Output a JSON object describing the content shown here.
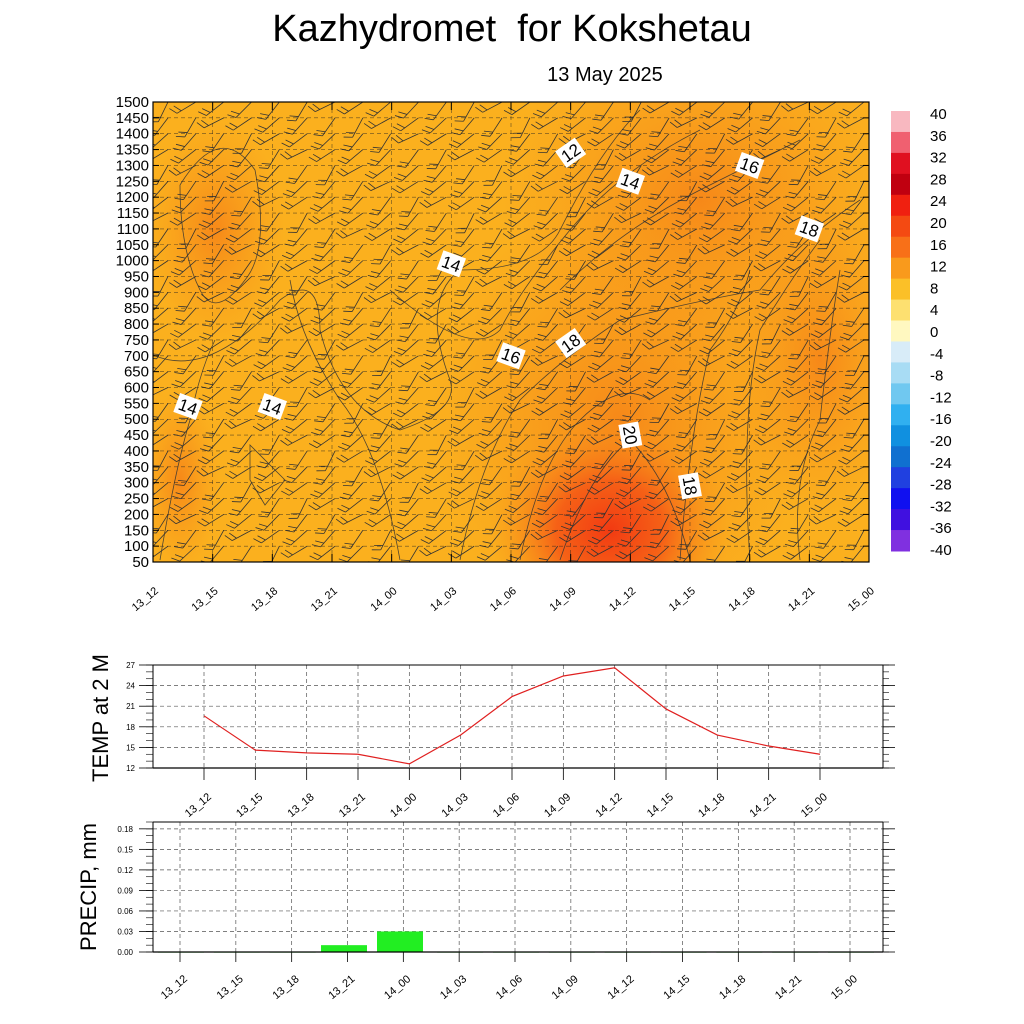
{
  "title": "Kazhydromet  for Kokshetau",
  "subtitle": "13 May 2025",
  "time_labels": [
    "13_12",
    "13_15",
    "13_18",
    "13_21",
    "14_00",
    "14_03",
    "14_06",
    "14_09",
    "14_12",
    "14_15",
    "14_18",
    "14_21",
    "15_00"
  ],
  "colors": {
    "warm_low": "#fbb01e",
    "warm_mid": "#f8961a",
    "hot": "#f23a12",
    "temp_line": "#e02020",
    "precip_bar": "#22ee22"
  },
  "chart_data": [
    {
      "type": "heatmap",
      "description_y": "height levels",
      "y_ticks": [
        50,
        100,
        150,
        200,
        250,
        300,
        350,
        400,
        450,
        500,
        550,
        600,
        650,
        700,
        750,
        800,
        850,
        900,
        950,
        1000,
        1050,
        1100,
        1150,
        1200,
        1250,
        1300,
        1350,
        1400,
        1450,
        1500
      ],
      "ylim": [
        50,
        1500
      ],
      "x": [
        "13_12",
        "13_15",
        "13_18",
        "13_21",
        "14_00",
        "14_03",
        "14_06",
        "14_09",
        "14_12",
        "14_15",
        "14_18",
        "14_21",
        "15_00"
      ],
      "contour_labels": [
        {
          "text": "12",
          "x": "14_09",
          "y": 1340
        },
        {
          "text": "14",
          "x": "14_12",
          "y": 1250
        },
        {
          "text": "16",
          "x": "14_18",
          "y": 1300
        },
        {
          "text": "18",
          "x": "14_21",
          "y": 1100
        },
        {
          "text": "14",
          "x": "14_03",
          "y": 990
        },
        {
          "text": "18",
          "x": "14_09",
          "y": 740
        },
        {
          "text": "16",
          "x": "14_06",
          "y": 700
        },
        {
          "text": "14",
          "x": "13_12",
          "y": 540
        },
        {
          "text": "14",
          "x": "13_18",
          "y": 540
        },
        {
          "text": "20",
          "x": "14_12",
          "y": 450
        },
        {
          "text": "18",
          "x": "14_15",
          "y": 290
        }
      ],
      "colorbar": {
        "labels": [
          "40",
          "36",
          "32",
          "28",
          "24",
          "20",
          "16",
          "12",
          "8",
          "4",
          "0",
          "-4",
          "-8",
          "-12",
          "-16",
          "-20",
          "-24",
          "-28",
          "-32",
          "-36",
          "-40"
        ],
        "colors": [
          "#f8b8c0",
          "#f06070",
          "#e01020",
          "#c00010",
          "#f02010",
          "#f44a12",
          "#f87018",
          "#f99a1c",
          "#fbc028",
          "#fde070",
          "#fff8c0",
          "#d8ecf8",
          "#a8dcf4",
          "#70c8f0",
          "#30b0f0",
          "#1090e0",
          "#1070d0",
          "#2040e0",
          "#1010f0",
          "#4010e0",
          "#8030e0"
        ]
      }
    },
    {
      "type": "line",
      "ylabel": "TEMP at 2 M",
      "x": [
        "13_12",
        "13_15",
        "13_18",
        "13_21",
        "14_00",
        "14_03",
        "14_06",
        "14_09",
        "14_12",
        "14_15",
        "14_18",
        "14_21",
        "15_00"
      ],
      "series": [
        {
          "values": [
            19.6,
            14.6,
            14.2,
            14.0,
            12.6,
            16.8,
            22.4,
            25.4,
            26.6,
            20.6,
            16.8,
            15.2,
            14.0
          ]
        }
      ],
      "y_ticks": [
        12,
        15,
        18,
        21,
        24,
        27
      ],
      "ylim": [
        12,
        27
      ]
    },
    {
      "type": "bar",
      "ylabel": "PRECIP, mm",
      "categories": [
        "13_12",
        "13_15",
        "13_18",
        "13_21",
        "14_00",
        "14_03",
        "14_06",
        "14_09",
        "14_12",
        "14_15",
        "14_18",
        "14_21",
        "15_00"
      ],
      "values": [
        0,
        0,
        0,
        0.01,
        0.03,
        0,
        0,
        0,
        0,
        0,
        0,
        0,
        0
      ],
      "y_ticks": [
        "0.00",
        "0.03",
        "0.06",
        "0.09",
        "0.12",
        "0.15",
        "0.18"
      ],
      "ylim": [
        0,
        0.19
      ]
    }
  ]
}
